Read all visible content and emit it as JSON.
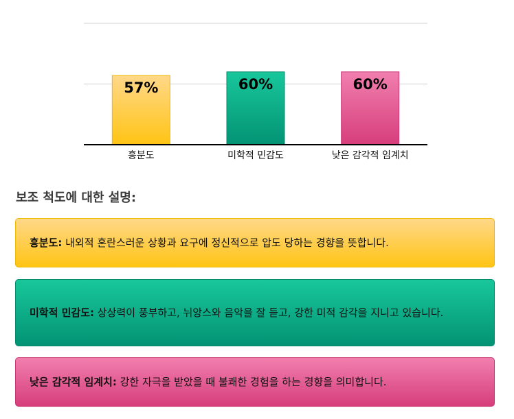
{
  "chart_data": {
    "type": "bar",
    "categories": [
      "흥분도",
      "미학적 민감도",
      "낮은 감각적 임계치"
    ],
    "values": [
      57,
      60,
      60
    ],
    "data_labels": [
      "57%",
      "60%",
      "60%"
    ],
    "ylim": [
      0,
      100
    ],
    "grid": true,
    "colors": [
      {
        "top": "#ffd889",
        "bottom": "#ffc414",
        "border": "#f0b800"
      },
      {
        "top": "#18c79b",
        "bottom": "#039374",
        "border": "#028a6b"
      },
      {
        "top": "#f17fae",
        "bottom": "#d63e7b",
        "border": "#c93572"
      }
    ]
  },
  "explanations": {
    "title": "보조 척도에 대한 설명:",
    "items": [
      {
        "term": "흥분도:",
        "text": " 내외적 혼란스러운 상황과 요구에 정신적으로 압도 당하는 경향을 뜻합니다."
      },
      {
        "term": "미학적 민감도:",
        "text": " 상상력이 풍부하고, 뉘앙스와 음악을 잘 듣고, 강한 미적 감각을 지니고 있습니다."
      },
      {
        "term": "낮은 감각적 임계치:",
        "text": " 강한 자극을 받았을 때 불쾌한 경험을 하는 경향을 의미합니다."
      }
    ]
  }
}
